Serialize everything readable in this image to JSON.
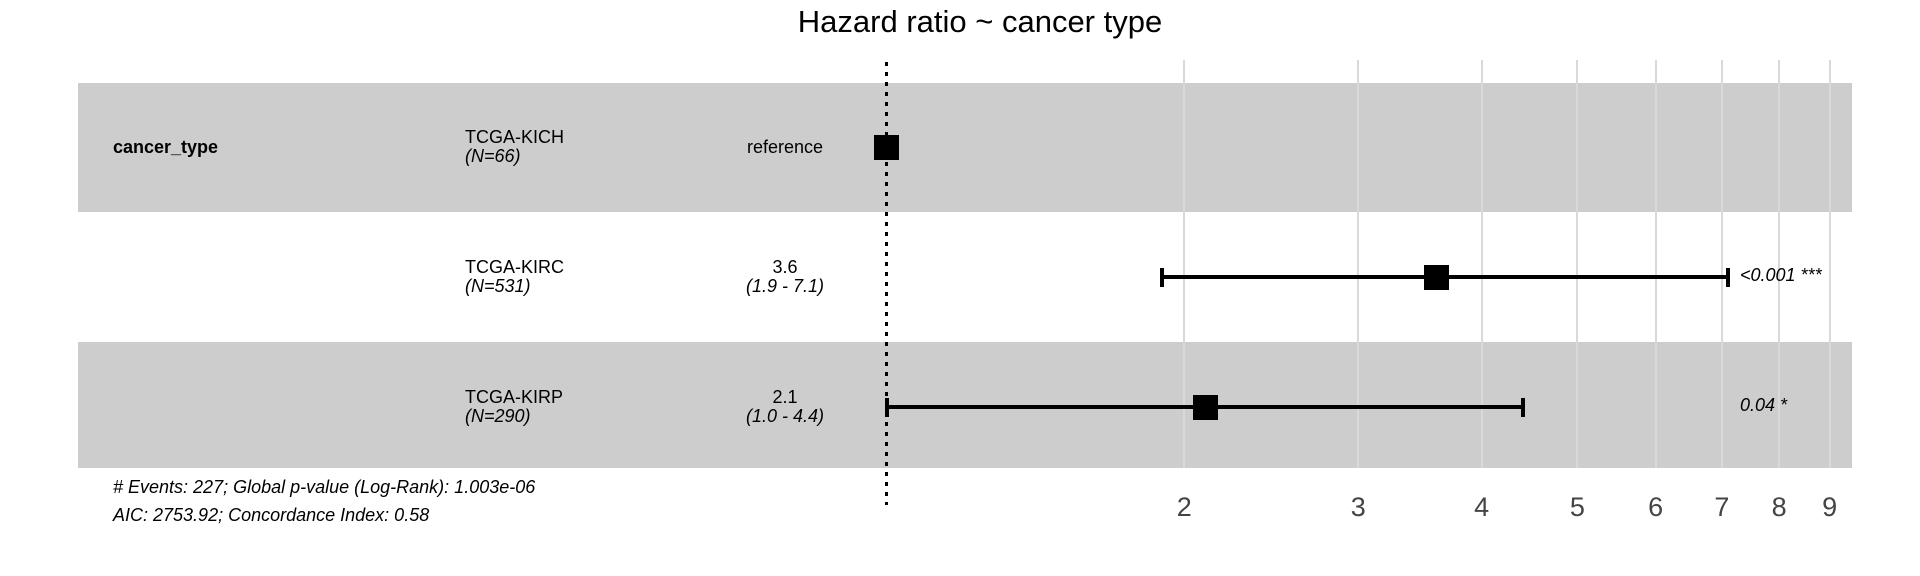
{
  "title": "Hazard ratio ~ cancer type",
  "table": {
    "variable_label": "cancer_type",
    "rows": [
      {
        "term": "TCGA-KICH",
        "n_label": "(N=66)",
        "est": "reference",
        "ci": "",
        "p": ""
      },
      {
        "term": "TCGA-KIRC",
        "n_label": "(N=531)",
        "est": "3.6",
        "ci": "(1.9 - 7.1)",
        "p": "<0.001 ***"
      },
      {
        "term": "TCGA-KIRP",
        "n_label": "(N=290)",
        "est": "2.1",
        "ci": "(1.0 - 4.4)",
        "p": "0.04 *"
      }
    ]
  },
  "chart_data": {
    "type": "forest",
    "title": "Hazard ratio ~ cancer type",
    "x_scale": "log10",
    "x_ticks": [
      2,
      3,
      4,
      5,
      6,
      7,
      8,
      9
    ],
    "reference_value": 1,
    "variable": "cancer_type",
    "series": [
      {
        "term": "TCGA-KICH",
        "n": 66,
        "hr": 1.0,
        "ci_low": null,
        "ci_high": null,
        "reference": true,
        "p_value": "",
        "significance": ""
      },
      {
        "term": "TCGA-KIRC",
        "n": 531,
        "hr": 3.6,
        "ci_low": 1.9,
        "ci_high": 7.1,
        "reference": false,
        "p_value": "<0.001",
        "significance": "***"
      },
      {
        "term": "TCGA-KIRP",
        "n": 290,
        "hr": 2.1,
        "ci_low": 1.0,
        "ci_high": 4.4,
        "reference": false,
        "p_value": "0.04",
        "significance": "*"
      }
    ],
    "colors": {
      "band": "#cdcdcd",
      "gridline": "#d9d9d9",
      "marker": "#000000",
      "axis_text": "#444444"
    },
    "legend": "none",
    "grid": "major-vertical-only"
  },
  "footer": {
    "line1": "# Events: 227; Global p-value (Log-Rank): 1.003e-06",
    "line2": "AIC: 2753.92; Concordance Index: 0.58"
  }
}
